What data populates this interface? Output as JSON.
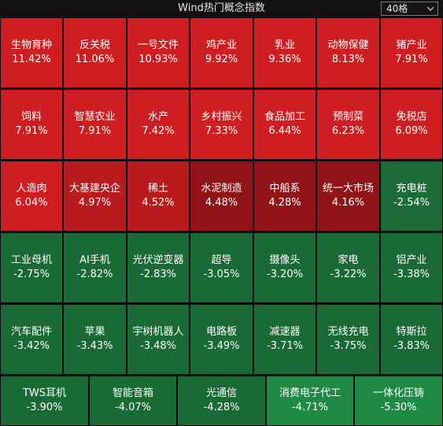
{
  "header": {
    "title": "Wind热门概念指数",
    "dropdown_value": "40格"
  },
  "colors": {
    "up_strong": "#cf1e22",
    "up_mid": "#b81a1e",
    "up_weak": "#8f1317",
    "down_weak": "#1e6b3a",
    "down_mid": "#1a6a35",
    "down_strong": "#1f8a45"
  },
  "tiles": [
    {
      "name": "生物育种",
      "value": "11.42%"
    },
    {
      "name": "反关税",
      "value": "11.06%"
    },
    {
      "name": "一号文件",
      "value": "10.93%"
    },
    {
      "name": "鸡产业",
      "value": "9.92%"
    },
    {
      "name": "乳业",
      "value": "9.36%"
    },
    {
      "name": "动物保健",
      "value": "8.13%"
    },
    {
      "name": "猪产业",
      "value": "7.91%"
    },
    {
      "name": "饲料",
      "value": "7.91%"
    },
    {
      "name": "智慧农业",
      "value": "7.91%"
    },
    {
      "name": "水产",
      "value": "7.42%"
    },
    {
      "name": "乡村振兴",
      "value": "7.33%"
    },
    {
      "name": "食品加工",
      "value": "6.44%"
    },
    {
      "name": "预制菜",
      "value": "6.23%"
    },
    {
      "name": "免税店",
      "value": "6.09%"
    },
    {
      "name": "人造肉",
      "value": "6.04%"
    },
    {
      "name": "大基建央企",
      "value": "4.97%"
    },
    {
      "name": "稀土",
      "value": "4.52%"
    },
    {
      "name": "水泥制造",
      "value": "4.48%"
    },
    {
      "name": "中船系",
      "value": "4.28%"
    },
    {
      "name": "统一大市场",
      "value": "4.16%"
    },
    {
      "name": "充电桩",
      "value": "-2.54%"
    },
    {
      "name": "工业母机",
      "value": "-2.75%"
    },
    {
      "name": "AI手机",
      "value": "-2.82%"
    },
    {
      "name": "光伏逆变器",
      "value": "-2.83%"
    },
    {
      "name": "超导",
      "value": "-3.05%"
    },
    {
      "name": "摄像头",
      "value": "-3.20%"
    },
    {
      "name": "家电",
      "value": "-3.22%"
    },
    {
      "name": "铝产业",
      "value": "-3.38%"
    },
    {
      "name": "汽车配件",
      "value": "-3.42%"
    },
    {
      "name": "苹果",
      "value": "-3.43%"
    },
    {
      "name": "宇树机器人",
      "value": "-3.48%"
    },
    {
      "name": "电路板",
      "value": "-3.49%"
    },
    {
      "name": "减速器",
      "value": "-3.71%"
    },
    {
      "name": "无线充电",
      "value": "-3.75%"
    },
    {
      "name": "特斯拉",
      "value": "-3.83%"
    },
    {
      "name": "TWS耳机",
      "value": "-3.90%"
    },
    {
      "name": "智能音箱",
      "value": "-4.07%"
    },
    {
      "name": "光通信",
      "value": "-4.28%"
    },
    {
      "name": "消费电子代工",
      "value": "-4.71%"
    },
    {
      "name": "一体化压铸",
      "value": "-5.30%"
    }
  ]
}
